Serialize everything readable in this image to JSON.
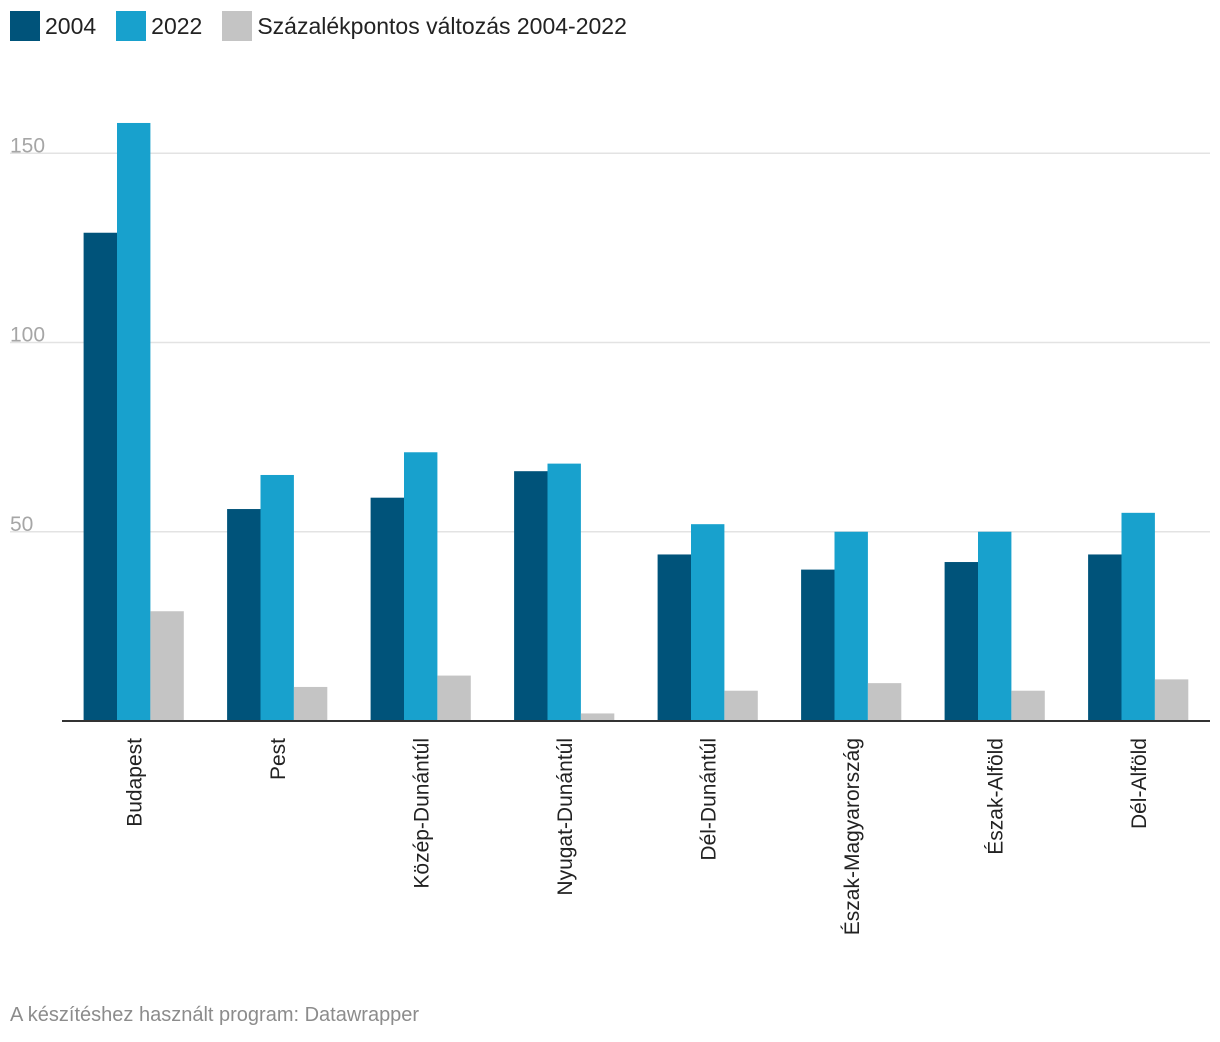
{
  "chart_data": {
    "type": "bar",
    "categories": [
      "Budapest",
      "Pest",
      "Közép-Dunántúl",
      "Nyugat-Dunántúl",
      "Dél-Dunántúl",
      "Észak-Magyarország",
      "Észak-Alföld",
      "Dél-Alföld"
    ],
    "series": [
      {
        "name": "2004",
        "color": "#00537a",
        "values": [
          129,
          56,
          59,
          66,
          44,
          40,
          42,
          44
        ]
      },
      {
        "name": "2022",
        "color": "#18a1cd",
        "values": [
          158,
          65,
          71,
          68,
          52,
          50,
          50,
          55
        ]
      },
      {
        "name": "Százalékpontos változás 2004-2022",
        "color": "#c4c4c4",
        "values": [
          29,
          9,
          12,
          2,
          8,
          10,
          8,
          11
        ]
      }
    ],
    "yticks": [
      50,
      100,
      150
    ],
    "ylim": [
      0,
      168
    ],
    "title": "",
    "xlabel": "",
    "ylabel": "",
    "grid": true,
    "legend_position": "top-left"
  },
  "footer": {
    "credit": "A készítéshez használt program: Datawrapper"
  }
}
